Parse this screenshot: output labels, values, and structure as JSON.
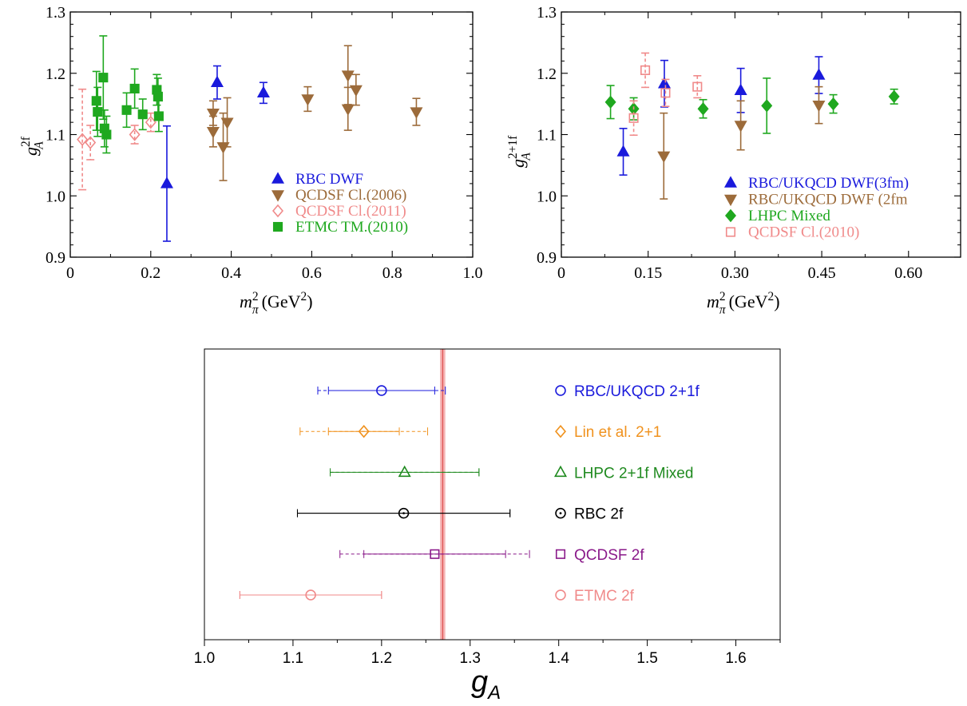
{
  "chart_data": [
    {
      "type": "scatter",
      "ylabel": "g_A^{2f}",
      "ylabel_main": "g",
      "ylabel_sub": "A",
      "ylabel_sup": "2f",
      "xlabel_main": "m",
      "xlabel_sub": "π",
      "xlabel_sup": "2",
      "xlabel_unit": "(GeV",
      "xlabel_unit_sup": "2",
      "xlabel_unit_close": ")",
      "xlim": [
        0,
        1.0
      ],
      "ylim": [
        0.9,
        1.3
      ],
      "xticks": [
        0,
        0.2,
        0.4,
        0.6,
        0.8,
        1.0
      ],
      "xtick_labels": [
        "0",
        "0.2",
        "0.4",
        "0.6",
        "0.8",
        "1.0"
      ],
      "yticks": [
        0.9,
        1.0,
        1.1,
        1.2,
        1.3
      ],
      "ytick_labels": [
        "0.9",
        "1.0",
        "1.1",
        "1.2",
        "1.3"
      ],
      "legend_position": "bottom-right",
      "series": [
        {
          "name": "RBC DWF",
          "marker": "triangle-up",
          "filled": true,
          "dashed": false,
          "color": "#1a1adc",
          "points": [
            {
              "x": 0.365,
              "y": 1.185,
              "err": 0.027
            },
            {
              "x": 0.48,
              "y": 1.168,
              "err": 0.017
            },
            {
              "x": 0.24,
              "y": 1.02,
              "err": 0.094
            }
          ]
        },
        {
          "name": "QCDSF Cl.(2006)",
          "marker": "triangle-down",
          "filled": true,
          "dashed": false,
          "color": "#9c6b3a",
          "points": [
            {
              "x": 0.355,
              "y": 1.135,
              "err": 0.02
            },
            {
              "x": 0.355,
              "y": 1.105,
              "err": 0.025
            },
            {
              "x": 0.38,
              "y": 1.08,
              "err": 0.055
            },
            {
              "x": 0.39,
              "y": 1.12,
              "err": 0.04
            },
            {
              "x": 0.59,
              "y": 1.158,
              "err": 0.02
            },
            {
              "x": 0.69,
              "y": 1.197,
              "err": 0.048
            },
            {
              "x": 0.69,
              "y": 1.142,
              "err": 0.035
            },
            {
              "x": 0.71,
              "y": 1.173,
              "err": 0.025
            },
            {
              "x": 0.86,
              "y": 1.137,
              "err": 0.022
            }
          ]
        },
        {
          "name": "QCDSF Cl.(2011)",
          "marker": "diamond",
          "filled": false,
          "dashed": true,
          "color": "#f08a8a",
          "points": [
            {
              "x": 0.03,
              "y": 1.092,
              "err": 0.082
            },
            {
              "x": 0.05,
              "y": 1.087,
              "err": 0.028
            },
            {
              "x": 0.16,
              "y": 1.1,
              "err": 0.015
            },
            {
              "x": 0.2,
              "y": 1.12,
              "err": 0.015
            }
          ]
        },
        {
          "name": "ETMC TM.(2010)",
          "marker": "square",
          "filled": true,
          "dashed": false,
          "color": "#1fa81f",
          "points": [
            {
              "x": 0.065,
              "y": 1.155,
              "err": 0.048
            },
            {
              "x": 0.068,
              "y": 1.137,
              "err": 0.04
            },
            {
              "x": 0.082,
              "y": 1.193,
              "err": 0.068
            },
            {
              "x": 0.085,
              "y": 1.11,
              "err": 0.03
            },
            {
              "x": 0.09,
              "y": 1.1,
              "err": 0.03
            },
            {
              "x": 0.14,
              "y": 1.14,
              "err": 0.028
            },
            {
              "x": 0.16,
              "y": 1.175,
              "err": 0.032
            },
            {
              "x": 0.18,
              "y": 1.133,
              "err": 0.025
            },
            {
              "x": 0.215,
              "y": 1.173,
              "err": 0.025
            },
            {
              "x": 0.218,
              "y": 1.162,
              "err": 0.03
            },
            {
              "x": 0.22,
              "y": 1.13,
              "err": 0.025
            }
          ]
        }
      ]
    },
    {
      "type": "scatter",
      "ylabel": "g_A^{2+1f}",
      "ylabel_main": "g",
      "ylabel_sub": "A",
      "ylabel_sup": "2+1f",
      "xlabel_main": "m",
      "xlabel_sub": "π",
      "xlabel_sup": "2",
      "xlabel_unit": "(GeV",
      "xlabel_unit_sup": "2",
      "xlabel_unit_close": ")",
      "xlim": [
        0,
        0.69
      ],
      "ylim": [
        0.9,
        1.3
      ],
      "xticks": [
        0,
        0.15,
        0.3,
        0.45,
        0.6
      ],
      "xtick_labels": [
        "0",
        "0.15",
        "0.30",
        "0.45",
        "0.60"
      ],
      "yticks": [
        0.9,
        1.0,
        1.1,
        1.2,
        1.3
      ],
      "ytick_labels": [
        "0.9",
        "1.0",
        "1.1",
        "1.2",
        "1.3"
      ],
      "legend_position": "bottom-right",
      "series": [
        {
          "name": "RBC/UKQCD DWF(3fm)",
          "marker": "triangle-up",
          "filled": true,
          "dashed": false,
          "color": "#1a1adc",
          "points": [
            {
              "x": 0.107,
              "y": 1.072,
              "err": 0.038
            },
            {
              "x": 0.178,
              "y": 1.183,
              "err": 0.038
            },
            {
              "x": 0.31,
              "y": 1.172,
              "err": 0.036
            },
            {
              "x": 0.445,
              "y": 1.197,
              "err": 0.03
            }
          ]
        },
        {
          "name": "RBC/UKQCD DWF (2fm",
          "marker": "triangle-down",
          "filled": true,
          "dashed": false,
          "color": "#9c6b3a",
          "points": [
            {
              "x": 0.177,
              "y": 1.065,
              "err": 0.07
            },
            {
              "x": 0.31,
              "y": 1.115,
              "err": 0.04
            },
            {
              "x": 0.445,
              "y": 1.148,
              "err": 0.03
            }
          ]
        },
        {
          "name": "LHPC Mixed",
          "marker": "diamond",
          "filled": true,
          "dashed": false,
          "color": "#1fa81f",
          "points": [
            {
              "x": 0.085,
              "y": 1.153,
              "err": 0.027
            },
            {
              "x": 0.125,
              "y": 1.142,
              "err": 0.018
            },
            {
              "x": 0.245,
              "y": 1.142,
              "err": 0.015
            },
            {
              "x": 0.355,
              "y": 1.147,
              "err": 0.045
            },
            {
              "x": 0.47,
              "y": 1.15,
              "err": 0.015
            },
            {
              "x": 0.575,
              "y": 1.162,
              "err": 0.012
            }
          ]
        },
        {
          "name": "QCDSF Cl.(2010)",
          "marker": "square",
          "filled": false,
          "dashed": true,
          "color": "#f08a8a",
          "points": [
            {
              "x": 0.125,
              "y": 1.127,
              "err": 0.028
            },
            {
              "x": 0.145,
              "y": 1.205,
              "err": 0.028
            },
            {
              "x": 0.18,
              "y": 1.168,
              "err": 0.022
            },
            {
              "x": 0.235,
              "y": 1.178,
              "err": 0.018
            }
          ]
        }
      ]
    },
    {
      "type": "scatter",
      "xlabel_main": "g",
      "xlabel_sub": "A",
      "xlim": [
        1.0,
        1.65
      ],
      "xticks": [
        1.0,
        1.1,
        1.2,
        1.3,
        1.4,
        1.5,
        1.6
      ],
      "xtick_labels": [
        "1.0",
        "1.1",
        "1.2",
        "1.3",
        "1.4",
        "1.5",
        "1.6"
      ],
      "experimental_band": {
        "center": 1.269,
        "halfwidth": 0.003,
        "color": "#e05a5a"
      },
      "legend_position": "right",
      "series": [
        {
          "name": "RBC/UKQCD 2+1f",
          "marker": "circle",
          "color": "#1a1adc",
          "value": 1.2,
          "inner": [
            1.14,
            1.26
          ],
          "outer": [
            1.128,
            1.272
          ],
          "dashed": true
        },
        {
          "name": "Lin et al. 2+1",
          "marker": "diamond",
          "color": "#f0921e",
          "value": 1.18,
          "inner": [
            1.14,
            1.22
          ],
          "outer": [
            1.108,
            1.252
          ],
          "dashed": true
        },
        {
          "name": "LHPC 2+1f Mixed",
          "marker": "triangle-up",
          "color": "#1f8a1f",
          "value": 1.226,
          "inner": [
            1.142,
            1.31
          ],
          "outer": [
            1.142,
            1.31
          ],
          "dashed": true
        },
        {
          "name": "RBC 2f",
          "marker": "circle-dot",
          "color": "#000000",
          "value": 1.225,
          "inner": [
            1.105,
            1.345
          ],
          "outer": [
            1.105,
            1.345
          ],
          "dashed": false
        },
        {
          "name": "QCDSF 2f",
          "marker": "square",
          "color": "#8a1a8a",
          "value": 1.26,
          "inner": [
            1.18,
            1.34
          ],
          "outer": [
            1.153,
            1.367
          ],
          "dashed": true
        },
        {
          "name": "ETMC 2f",
          "marker": "circle",
          "color": "#f08a8a",
          "value": 1.12,
          "inner": [
            1.04,
            1.2
          ],
          "outer": [
            1.04,
            1.2
          ],
          "dashed": false
        }
      ]
    }
  ]
}
